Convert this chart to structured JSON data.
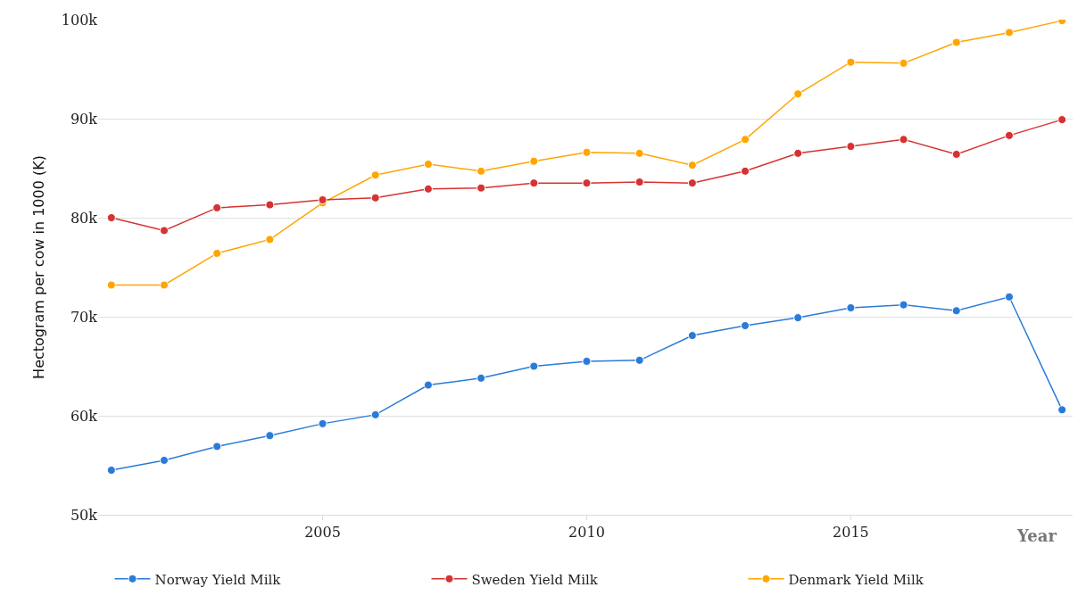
{
  "chart_data": {
    "type": "line",
    "xlabel": "Year",
    "ylabel": "Hectogram per cow in 1000 (K)",
    "x": [
      2001,
      2002,
      2003,
      2004,
      2005,
      2006,
      2007,
      2008,
      2009,
      2010,
      2011,
      2012,
      2013,
      2014,
      2015,
      2016,
      2017,
      2018,
      2019
    ],
    "series": [
      {
        "name": "Norway Yield Milk",
        "color": "#2a7bd8",
        "values": [
          54.5,
          55.5,
          56.9,
          58.0,
          59.2,
          60.1,
          63.1,
          63.8,
          65.0,
          65.5,
          65.6,
          68.1,
          69.1,
          69.9,
          70.9,
          71.2,
          70.6,
          72.0,
          60.6
        ]
      },
      {
        "name": "Sweden Yield Milk",
        "color": "#d63232",
        "values": [
          80.0,
          78.7,
          81.0,
          81.3,
          81.8,
          82.0,
          82.9,
          83.0,
          83.5,
          83.5,
          83.6,
          83.5,
          84.7,
          86.5,
          87.2,
          87.9,
          86.4,
          88.3,
          89.9
        ]
      },
      {
        "name": "Denmark Yield Milk",
        "color": "#ffa500",
        "values": [
          73.2,
          73.2,
          76.4,
          77.8,
          81.5,
          84.3,
          85.4,
          84.7,
          85.7,
          86.6,
          86.5,
          85.3,
          87.9,
          92.5,
          95.7,
          95.6,
          97.7,
          98.7,
          99.9
        ]
      }
    ],
    "xlim": [
      2000.75,
      2019.2
    ],
    "xticks": [
      2005,
      2010,
      2015
    ],
    "ylim": [
      50,
      100
    ],
    "yticks": [
      {
        "value": 50,
        "label": "50k"
      },
      {
        "value": 60,
        "label": "60k"
      },
      {
        "value": 70,
        "label": "70k"
      },
      {
        "value": 80,
        "label": "80k"
      },
      {
        "value": 90,
        "label": "90k"
      },
      {
        "value": 100,
        "label": "100k"
      }
    ],
    "grid": "y",
    "legend": "bottom",
    "marker": "circle",
    "line_style": "solid"
  }
}
